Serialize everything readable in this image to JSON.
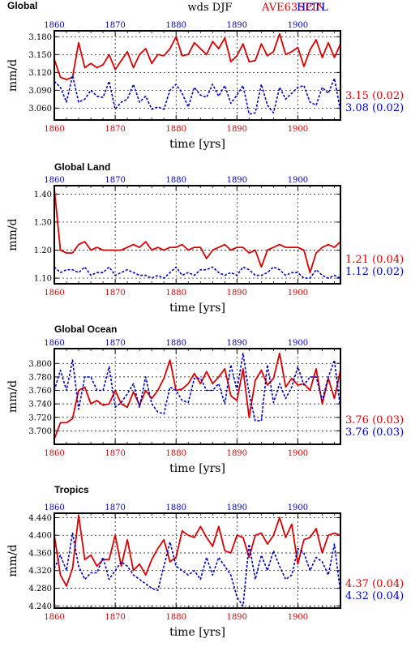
{
  "header": {
    "center_label": "wds  DJF",
    "series_a_label": "AVE63SPIN",
    "series_b_label": "HCTL"
  },
  "colors": {
    "series_a": "#dd0000",
    "series_b": "#0000cc",
    "axis": "#000000",
    "grid": "#000000"
  },
  "chart_data": [
    {
      "type": "line",
      "title": "Global",
      "ylabel": "mm/d",
      "xlabel": "time [yrs]",
      "xlim": [
        1860,
        1907
      ],
      "ylim": [
        3.04,
        3.19
      ],
      "yticks": [
        3.06,
        3.09,
        3.12,
        3.15,
        3.18
      ],
      "ytick_labels": [
        "3.060",
        "3.090",
        "3.120",
        "3.150",
        "3.180"
      ],
      "xticks": [
        1860,
        1870,
        1880,
        1890,
        1900
      ],
      "xtick_labels": [
        "1860",
        "1870",
        "1880",
        "1890",
        "1900"
      ],
      "x_start": 1860,
      "series": [
        {
          "values": [
            3.142,
            3.112,
            3.108,
            3.112,
            3.17,
            3.128,
            3.135,
            3.128,
            3.133,
            3.15,
            3.125,
            3.14,
            3.155,
            3.128,
            3.15,
            3.16,
            3.135,
            3.15,
            3.148,
            3.16,
            3.18,
            3.148,
            3.15,
            3.17,
            3.16,
            3.15,
            3.172,
            3.16,
            3.178,
            3.138,
            3.148,
            3.168,
            3.138,
            3.14,
            3.168,
            3.148,
            3.155,
            3.185,
            3.15,
            3.155,
            3.162,
            3.13,
            3.158,
            3.175,
            3.145,
            3.17,
            3.145,
            3.168
          ],
          "stat": "3.15 (0.02)"
        },
        {
          "values": [
            3.105,
            3.095,
            3.07,
            3.115,
            3.07,
            3.075,
            3.09,
            3.08,
            3.078,
            3.105,
            3.058,
            3.07,
            3.075,
            3.1,
            3.07,
            3.08,
            3.058,
            3.062,
            3.058,
            3.09,
            3.1,
            3.085,
            3.062,
            3.095,
            3.082,
            3.078,
            3.1,
            3.08,
            3.098,
            3.068,
            3.082,
            3.098,
            3.05,
            3.052,
            3.1,
            3.065,
            3.052,
            3.095,
            3.075,
            3.085,
            3.095,
            3.098,
            3.07,
            3.065,
            3.095,
            3.085,
            3.11,
            3.055
          ],
          "stat": "3.08 (0.02)"
        }
      ]
    },
    {
      "type": "line",
      "title": "Global Land",
      "ylabel": "mm/d",
      "xlabel": "time [yrs]",
      "xlim": [
        1860,
        1907
      ],
      "ylim": [
        1.08,
        1.43
      ],
      "yticks": [
        1.1,
        1.2,
        1.3,
        1.4
      ],
      "ytick_labels": [
        "1.10",
        "1.20",
        "1.30",
        "1.40"
      ],
      "xticks": [
        1860,
        1870,
        1880,
        1890,
        1900
      ],
      "xtick_labels": [
        "1860",
        "1870",
        "1880",
        "1890",
        "1900"
      ],
      "x_start": 1860,
      "series": [
        {
          "values": [
            1.42,
            1.2,
            1.19,
            1.19,
            1.22,
            1.23,
            1.2,
            1.21,
            1.2,
            1.2,
            1.2,
            1.2,
            1.21,
            1.22,
            1.21,
            1.23,
            1.2,
            1.21,
            1.2,
            1.21,
            1.21,
            1.22,
            1.2,
            1.21,
            1.21,
            1.17,
            1.2,
            1.21,
            1.22,
            1.2,
            1.21,
            1.21,
            1.19,
            1.2,
            1.14,
            1.2,
            1.21,
            1.22,
            1.21,
            1.21,
            1.21,
            1.2,
            1.12,
            1.19,
            1.21,
            1.22,
            1.21,
            1.23
          ],
          "stat": "1.21 (0.04)"
        },
        {
          "values": [
            1.14,
            1.12,
            1.13,
            1.13,
            1.12,
            1.14,
            1.11,
            1.12,
            1.12,
            1.14,
            1.11,
            1.12,
            1.13,
            1.12,
            1.11,
            1.11,
            1.1,
            1.11,
            1.1,
            1.12,
            1.14,
            1.11,
            1.12,
            1.11,
            1.13,
            1.13,
            1.14,
            1.12,
            1.11,
            1.12,
            1.11,
            1.14,
            1.13,
            1.11,
            1.11,
            1.12,
            1.14,
            1.13,
            1.11,
            1.12,
            1.12,
            1.1,
            1.1,
            1.13,
            1.11,
            1.1,
            1.11,
            1.1
          ],
          "stat": "1.12 (0.02)"
        }
      ]
    },
    {
      "type": "line",
      "title": "Global Ocean",
      "ylabel": "mm/d",
      "xlabel": "time [yrs]",
      "xlim": [
        1860,
        1907
      ],
      "ylim": [
        3.68,
        3.822
      ],
      "yticks": [
        3.7,
        3.72,
        3.74,
        3.76,
        3.78,
        3.8
      ],
      "ytick_labels": [
        "3.700",
        "3.720",
        "3.740",
        "3.760",
        "3.780",
        "3.800"
      ],
      "xticks": [
        1860,
        1870,
        1880,
        1890,
        1900
      ],
      "xtick_labels": [
        "1860",
        "1870",
        "1880",
        "1890",
        "1900"
      ],
      "x_start": 1860,
      "series": [
        {
          "values": [
            3.688,
            3.712,
            3.712,
            3.718,
            3.76,
            3.765,
            3.74,
            3.745,
            3.738,
            3.74,
            3.76,
            3.74,
            3.735,
            3.758,
            3.738,
            3.76,
            3.748,
            3.76,
            3.778,
            3.805,
            3.76,
            3.762,
            3.77,
            3.785,
            3.77,
            3.788,
            3.77,
            3.78,
            3.792,
            3.752,
            3.745,
            3.792,
            3.72,
            3.775,
            3.79,
            3.768,
            3.778,
            3.815,
            3.765,
            3.778,
            3.768,
            3.77,
            3.76,
            3.792,
            3.74,
            3.778,
            3.748,
            3.79
          ],
          "stat": "3.76 (0.03)"
        },
        {
          "values": [
            3.76,
            3.79,
            3.76,
            3.805,
            3.732,
            3.78,
            3.78,
            3.76,
            3.76,
            3.795,
            3.735,
            3.742,
            3.755,
            3.77,
            3.735,
            3.78,
            3.74,
            3.728,
            3.725,
            3.765,
            3.76,
            3.745,
            3.742,
            3.778,
            3.778,
            3.76,
            3.76,
            3.77,
            3.74,
            3.798,
            3.76,
            3.815,
            3.755,
            3.715,
            3.715,
            3.798,
            3.742,
            3.77,
            3.748,
            3.765,
            3.795,
            3.768,
            3.78,
            3.78,
            3.745,
            3.78,
            3.805,
            3.732
          ],
          "stat": "3.76 (0.03)"
        }
      ]
    },
    {
      "type": "line",
      "title": "Tropics",
      "ylabel": "mm/d",
      "xlabel": "time [yrs]",
      "xlim": [
        1860,
        1907
      ],
      "ylim": [
        4.235,
        4.45
      ],
      "yticks": [
        4.24,
        4.28,
        4.32,
        4.36,
        4.4,
        4.44
      ],
      "ytick_labels": [
        "4.240",
        "4.280",
        "4.320",
        "4.360",
        "4.400",
        "4.440"
      ],
      "xticks": [
        1860,
        1870,
        1880,
        1890,
        1900
      ],
      "xtick_labels": [
        "1860",
        "1870",
        "1880",
        "1890",
        "1900"
      ],
      "x_start": 1860,
      "series": [
        {
          "values": [
            4.4,
            4.31,
            4.285,
            4.325,
            4.445,
            4.345,
            4.355,
            4.33,
            4.345,
            4.345,
            4.4,
            4.33,
            4.39,
            4.32,
            4.335,
            4.31,
            4.345,
            4.37,
            4.39,
            4.34,
            4.35,
            4.41,
            4.4,
            4.395,
            4.42,
            4.395,
            4.375,
            4.42,
            4.365,
            4.36,
            4.4,
            4.395,
            4.35,
            4.4,
            4.405,
            4.38,
            4.4,
            4.44,
            4.395,
            4.425,
            4.335,
            4.39,
            4.395,
            4.415,
            4.36,
            4.4,
            4.405,
            4.4
          ],
          "stat": "4.37 (0.04)"
        },
        {
          "values": [
            4.325,
            4.355,
            4.32,
            4.405,
            4.33,
            4.3,
            4.315,
            4.315,
            4.35,
            4.3,
            4.32,
            4.34,
            4.33,
            4.31,
            4.3,
            4.29,
            4.28,
            4.275,
            4.33,
            4.385,
            4.33,
            4.32,
            4.31,
            4.32,
            4.3,
            4.35,
            4.31,
            4.35,
            4.33,
            4.31,
            4.26,
            4.24,
            4.38,
            4.3,
            4.355,
            4.32,
            4.365,
            4.33,
            4.3,
            4.31,
            4.37,
            4.36,
            4.32,
            4.35,
            4.34,
            4.31,
            4.38,
            4.27
          ],
          "stat": "4.32 (0.04)"
        }
      ]
    }
  ]
}
